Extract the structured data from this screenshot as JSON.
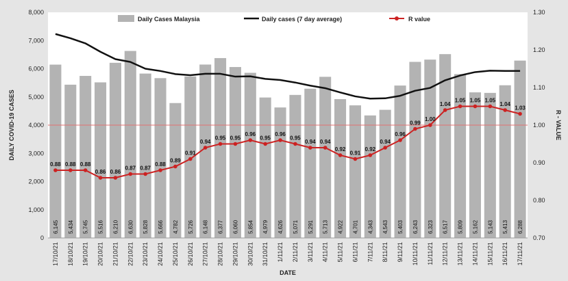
{
  "chart_data": {
    "type": "bar",
    "xlabel": "DATE",
    "ylabel_left": "DAILY COVID-19 CASES",
    "ylabel_right": "R - VALUE",
    "ylim_left": [
      0,
      8000
    ],
    "ylim_right": [
      0.7,
      1.3
    ],
    "left_ticks": [
      "0",
      "1,000",
      "2,000",
      "3,000",
      "4,000",
      "5,000",
      "6,000",
      "7,000",
      "8,000"
    ],
    "right_ticks": [
      "0.70",
      "0.80",
      "0.90",
      "1.00",
      "1.10",
      "1.20",
      "1.30"
    ],
    "reference_line": {
      "axis": "right",
      "value": 1.0,
      "color": "#e07070"
    },
    "categories": [
      "17/10/21",
      "18/10/21",
      "19/10/21",
      "20/10/21",
      "21/10/21",
      "22/10/21",
      "23/10/21",
      "24/10/21",
      "25/10/21",
      "26/10/21",
      "27/10/21",
      "28/10/21",
      "29/10/21",
      "30/10/21",
      "31/10/21",
      "1/11/21",
      "2/11/21",
      "3/11/21",
      "4/11/21",
      "5/11/21",
      "6/11/21",
      "7/11/21",
      "8/11/21",
      "9/11/21",
      "10/11/21",
      "11/11/21",
      "12/11/21",
      "13/11/21",
      "14/11/21",
      "15/11/21",
      "16/11/21",
      "17/11/21"
    ],
    "series": [
      {
        "name": "Daily Cases Malaysia",
        "type": "bar",
        "axis": "left",
        "color": "#b3b3b3",
        "values": [
          6145,
          5434,
          5745,
          5516,
          6210,
          6630,
          5828,
          5666,
          4782,
          5726,
          6148,
          6377,
          6060,
          5854,
          4979,
          4626,
          5071,
          5291,
          5713,
          4922,
          4701,
          4343,
          4543,
          5403,
          6243,
          6323,
          6517,
          5809,
          5162,
          5143,
          5413,
          6288
        ],
        "labels": [
          "6,145",
          "5,434",
          "5,745",
          "5,516",
          "6,210",
          "6,630",
          "5,828",
          "5,666",
          "4,782",
          "5,726",
          "6,148",
          "6,377",
          "6,060",
          "5,854",
          "4,979",
          "4,626",
          "5,071",
          "5,291",
          "5,713",
          "4,922",
          "4,701",
          "4,343",
          "4,543",
          "5,403",
          "6,243",
          "6,323",
          "6,517",
          "5,809",
          "5,162",
          "5,143",
          "5,413",
          "6,288"
        ]
      },
      {
        "name": "Daily cases (7 day average)",
        "type": "line",
        "axis": "left",
        "color": "#111111",
        "values": [
          7230,
          7080,
          6900,
          6600,
          6340,
          6240,
          6000,
          5920,
          5810,
          5770,
          5820,
          5820,
          5720,
          5730,
          5640,
          5600,
          5510,
          5400,
          5310,
          5160,
          5020,
          4940,
          4950,
          5040,
          5220,
          5320,
          5590,
          5760,
          5880,
          5930,
          5920,
          5920
        ]
      },
      {
        "name": "R value",
        "type": "line",
        "axis": "right",
        "color": "#cc2222",
        "values": [
          0.88,
          0.88,
          0.88,
          0.86,
          0.86,
          0.87,
          0.87,
          0.88,
          0.89,
          0.91,
          0.94,
          0.95,
          0.95,
          0.96,
          0.95,
          0.96,
          0.95,
          0.94,
          0.94,
          0.92,
          0.91,
          0.92,
          0.94,
          0.96,
          0.99,
          1.0,
          1.04,
          1.05,
          1.05,
          1.05,
          1.04,
          1.03
        ],
        "labels": [
          "0.88",
          "0.88",
          "0.88",
          "0.86",
          "0.86",
          "0.87",
          "0.87",
          "0.88",
          "0.89",
          "0.91",
          "0.94",
          "0.95",
          "0.95",
          "0.96",
          "0.95",
          "0.96",
          "0.95",
          "0.94",
          "0.94",
          "0.92",
          "0.91",
          "0.92",
          "0.94",
          "0.96",
          "0.99",
          "1.00",
          "1.04",
          "1.05",
          "1.05",
          "1.05",
          "1.04",
          "1.03"
        ]
      }
    ],
    "legend": {
      "placement": "top",
      "items": [
        {
          "label": "Daily Cases Malaysia",
          "kind": "bar",
          "color": "#b3b3b3"
        },
        {
          "label": "Daily cases (7 day average)",
          "kind": "line",
          "color": "#111111"
        },
        {
          "label": "R value",
          "kind": "line-marker",
          "color": "#cc2222"
        }
      ]
    },
    "grid": false
  }
}
